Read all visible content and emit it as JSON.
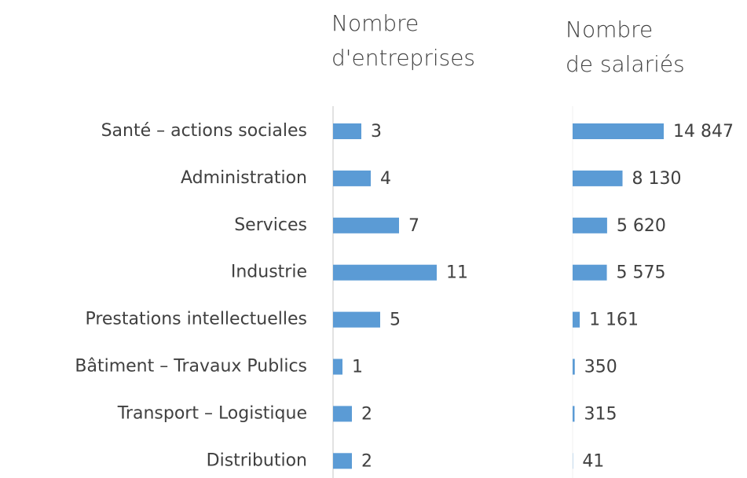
{
  "chart_data": {
    "type": "bar",
    "categories": [
      "Santé – actions sociales",
      "Administration",
      "Services",
      "Industrie",
      "Prestations intellectuelles",
      "Bâtiment – Travaux Publics",
      "Transport – Logistique",
      "Distribution"
    ],
    "series": [
      {
        "name": "Nombre\nd'entreprises",
        "color": "#5b9bd5",
        "values": [
          3,
          4,
          7,
          11,
          5,
          1,
          2,
          2
        ]
      },
      {
        "name": "Nombre\nde salariés",
        "color": "#5b9bd5",
        "values": [
          14847,
          8130,
          5620,
          5575,
          1161,
          350,
          315,
          41
        ],
        "value_labels": [
          "14 847",
          "8 130",
          "5 620",
          "5 575",
          "1 161",
          "350",
          "315",
          "41"
        ]
      }
    ]
  }
}
